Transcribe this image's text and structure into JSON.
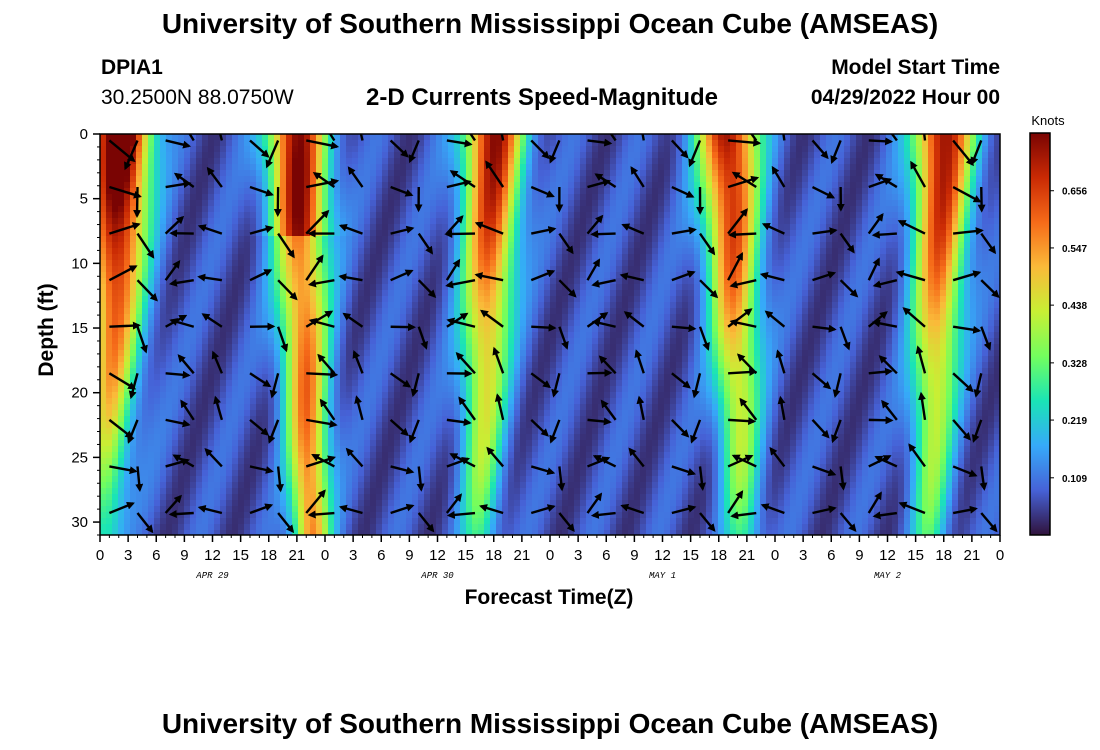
{
  "header": {
    "title": "University of Southern Mississippi Ocean Cube (AMSEAS)",
    "station_id": "DPIA1",
    "station_position": "30.2500N  88.0750W",
    "subtitle": "2-D Currents Speed-Magnitude",
    "model_start_label": "Model Start Time",
    "model_start_value": "04/29/2022 Hour 00"
  },
  "footer": {
    "title": "University of Southern Mississippi Ocean Cube (AMSEAS)"
  },
  "chart_data": {
    "type": "heatmap",
    "title": "2-D Currents Speed-Magnitude",
    "xlabel": "Forecast Time(Z)",
    "ylabel": "Depth (ft)",
    "x_range": [
      0,
      96
    ],
    "y_range": [
      0,
      31
    ],
    "x_ticks": [
      {
        "hours": 0,
        "label": "0"
      },
      {
        "hours": 3,
        "label": "3"
      },
      {
        "hours": 6,
        "label": "6"
      },
      {
        "hours": 9,
        "label": "9"
      },
      {
        "hours": 12,
        "label": "12"
      },
      {
        "hours": 15,
        "label": "15"
      },
      {
        "hours": 18,
        "label": "18"
      },
      {
        "hours": 21,
        "label": "21"
      },
      {
        "hours": 24,
        "label": "0"
      },
      {
        "hours": 27,
        "label": "3"
      },
      {
        "hours": 30,
        "label": "6"
      },
      {
        "hours": 33,
        "label": "9"
      },
      {
        "hours": 36,
        "label": "12"
      },
      {
        "hours": 39,
        "label": "15"
      },
      {
        "hours": 42,
        "label": "18"
      },
      {
        "hours": 45,
        "label": "21"
      },
      {
        "hours": 48,
        "label": "0"
      },
      {
        "hours": 51,
        "label": "3"
      },
      {
        "hours": 54,
        "label": "6"
      },
      {
        "hours": 57,
        "label": "9"
      },
      {
        "hours": 60,
        "label": "12"
      },
      {
        "hours": 63,
        "label": "15"
      },
      {
        "hours": 66,
        "label": "18"
      },
      {
        "hours": 69,
        "label": "21"
      },
      {
        "hours": 72,
        "label": "0"
      },
      {
        "hours": 75,
        "label": "3"
      },
      {
        "hours": 78,
        "label": "6"
      },
      {
        "hours": 81,
        "label": "9"
      },
      {
        "hours": 84,
        "label": "12"
      },
      {
        "hours": 87,
        "label": "15"
      },
      {
        "hours": 90,
        "label": "18"
      },
      {
        "hours": 93,
        "label": "21"
      },
      {
        "hours": 96,
        "label": "0"
      }
    ],
    "day_labels": [
      {
        "hours": 12,
        "label": "APR 29"
      },
      {
        "hours": 36,
        "label": "APR 30"
      },
      {
        "hours": 60,
        "label": "MAY 1"
      },
      {
        "hours": 84,
        "label": "MAY 2"
      }
    ],
    "y_ticks": [
      0,
      5,
      10,
      15,
      20,
      25,
      30
    ],
    "colorbar": {
      "label": "Knots",
      "ticks": [
        0.109,
        0.219,
        0.328,
        0.438,
        0.547,
        0.656
      ],
      "range": [
        0.0,
        0.766
      ]
    },
    "colormap": [
      "#30123b",
      "#4662d7",
      "#36aaf9",
      "#1ae4b6",
      "#72fe5e",
      "#c8ef34",
      "#faba39",
      "#f66b19",
      "#ca2a04",
      "#7a0403"
    ],
    "speed_peaks_hours": [
      2,
      21,
      42,
      67,
      90
    ],
    "max_speed_knots": 0.766
  }
}
